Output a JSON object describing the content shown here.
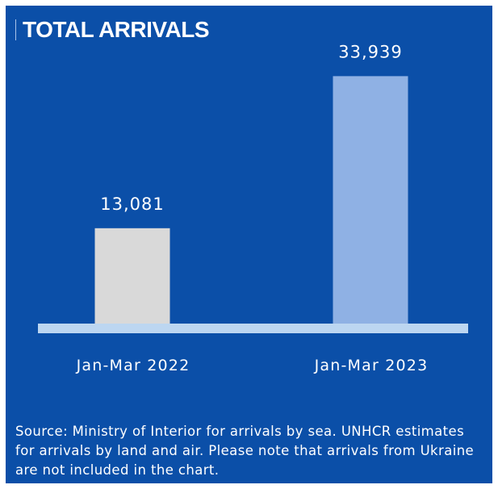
{
  "title": "TOTAL ARRIVALS",
  "source": "Source: Ministry of Interior for arrivals by sea. UNHCR estimates for arrivals by land and air. Please note that arrivals from Ukraine are not included in the chart.",
  "colors": {
    "background": "#0b4fa8",
    "bar_2022": "#d9d9d9",
    "bar_2023": "#8fb1e4",
    "baseline": "#bcd6f1",
    "text": "#ffffff"
  },
  "chart_data": {
    "type": "bar",
    "title": "TOTAL ARRIVALS",
    "categories": [
      "Jan-Mar 2022",
      "Jan-Mar 2023"
    ],
    "values": [
      13081,
      33939
    ],
    "value_labels": [
      "13,081",
      "33,939"
    ],
    "ylim": [
      0,
      37300
    ],
    "grid": false,
    "legend": "none"
  }
}
